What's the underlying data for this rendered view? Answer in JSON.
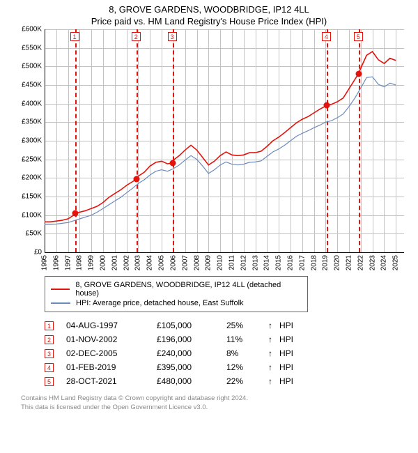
{
  "title": {
    "line1": "8, GROVE GARDENS, WOODBRIDGE, IP12 4LL",
    "line2": "Price paid vs. HM Land Registry's House Price Index (HPI)"
  },
  "chart": {
    "type": "line",
    "plot_bg": "#ffffff",
    "grid_color": "#c2c2c2",
    "axis_color": "#000000",
    "y": {
      "min": 0,
      "max": 600000,
      "step": 50000,
      "label_prefix": "£",
      "label_suffix": "K",
      "label_divisor": 1000,
      "fontsize": 10
    },
    "x": {
      "min": 1995,
      "max": 2025.7,
      "ticks_start": 1995,
      "ticks_end": 2025,
      "fontsize": 10
    },
    "series_property": {
      "name": "8, GROVE GARDENS, WOODBRIDGE, IP12 4LL (detached house)",
      "color": "#e3120b",
      "width": 1.6,
      "points": [
        [
          1995.0,
          82000
        ],
        [
          1995.5,
          82000
        ],
        [
          1996.0,
          84000
        ],
        [
          1996.5,
          86000
        ],
        [
          1997.0,
          90000
        ],
        [
          1997.5,
          100000
        ],
        [
          1997.6,
          105000
        ],
        [
          1998.0,
          108000
        ],
        [
          1998.5,
          112000
        ],
        [
          1999.0,
          118000
        ],
        [
          1999.5,
          124000
        ],
        [
          2000.0,
          134000
        ],
        [
          2000.5,
          148000
        ],
        [
          2001.0,
          158000
        ],
        [
          2001.5,
          168000
        ],
        [
          2002.0,
          180000
        ],
        [
          2002.8,
          196000
        ],
        [
          2003.0,
          205000
        ],
        [
          2003.5,
          215000
        ],
        [
          2004.0,
          232000
        ],
        [
          2004.5,
          242000
        ],
        [
          2005.0,
          245000
        ],
        [
          2005.5,
          238000
        ],
        [
          2005.9,
          240000
        ],
        [
          2006.0,
          248000
        ],
        [
          2006.5,
          260000
        ],
        [
          2007.0,
          275000
        ],
        [
          2007.5,
          288000
        ],
        [
          2008.0,
          275000
        ],
        [
          2008.5,
          255000
        ],
        [
          2009.0,
          235000
        ],
        [
          2009.5,
          245000
        ],
        [
          2010.0,
          260000
        ],
        [
          2010.5,
          270000
        ],
        [
          2011.0,
          262000
        ],
        [
          2011.5,
          260000
        ],
        [
          2012.0,
          262000
        ],
        [
          2012.5,
          268000
        ],
        [
          2013.0,
          268000
        ],
        [
          2013.5,
          272000
        ],
        [
          2014.0,
          285000
        ],
        [
          2014.5,
          300000
        ],
        [
          2015.0,
          310000
        ],
        [
          2015.5,
          322000
        ],
        [
          2016.0,
          335000
        ],
        [
          2016.5,
          348000
        ],
        [
          2017.0,
          358000
        ],
        [
          2017.5,
          365000
        ],
        [
          2018.0,
          375000
        ],
        [
          2018.5,
          385000
        ],
        [
          2019.1,
          395000
        ],
        [
          2019.5,
          398000
        ],
        [
          2020.0,
          405000
        ],
        [
          2020.5,
          415000
        ],
        [
          2021.0,
          440000
        ],
        [
          2021.8,
          480000
        ],
        [
          2022.0,
          495000
        ],
        [
          2022.5,
          530000
        ],
        [
          2023.0,
          540000
        ],
        [
          2023.5,
          518000
        ],
        [
          2024.0,
          508000
        ],
        [
          2024.5,
          522000
        ],
        [
          2025.0,
          516000
        ]
      ]
    },
    "series_hpi": {
      "name": "HPI: Average price, detached house, East Suffolk",
      "color": "#6b8abc",
      "width": 1.2,
      "points": [
        [
          1995.0,
          75000
        ],
        [
          1995.5,
          75000
        ],
        [
          1996.0,
          76000
        ],
        [
          1996.5,
          78000
        ],
        [
          1997.0,
          80000
        ],
        [
          1997.5,
          85000
        ],
        [
          1998.0,
          90000
        ],
        [
          1998.5,
          95000
        ],
        [
          1999.0,
          100000
        ],
        [
          1999.5,
          108000
        ],
        [
          2000.0,
          118000
        ],
        [
          2000.5,
          128000
        ],
        [
          2001.0,
          138000
        ],
        [
          2001.5,
          148000
        ],
        [
          2002.0,
          160000
        ],
        [
          2002.5,
          172000
        ],
        [
          2003.0,
          185000
        ],
        [
          2003.5,
          195000
        ],
        [
          2004.0,
          208000
        ],
        [
          2004.5,
          218000
        ],
        [
          2005.0,
          222000
        ],
        [
          2005.5,
          218000
        ],
        [
          2006.0,
          225000
        ],
        [
          2006.5,
          235000
        ],
        [
          2007.0,
          248000
        ],
        [
          2007.5,
          260000
        ],
        [
          2008.0,
          250000
        ],
        [
          2008.5,
          232000
        ],
        [
          2009.0,
          212000
        ],
        [
          2009.5,
          222000
        ],
        [
          2010.0,
          235000
        ],
        [
          2010.5,
          243000
        ],
        [
          2011.0,
          237000
        ],
        [
          2011.5,
          235000
        ],
        [
          2012.0,
          237000
        ],
        [
          2012.5,
          242000
        ],
        [
          2013.0,
          243000
        ],
        [
          2013.5,
          246000
        ],
        [
          2014.0,
          258000
        ],
        [
          2014.5,
          270000
        ],
        [
          2015.0,
          278000
        ],
        [
          2015.5,
          288000
        ],
        [
          2016.0,
          300000
        ],
        [
          2016.5,
          312000
        ],
        [
          2017.0,
          320000
        ],
        [
          2017.5,
          327000
        ],
        [
          2018.0,
          335000
        ],
        [
          2018.5,
          342000
        ],
        [
          2019.0,
          350000
        ],
        [
          2019.5,
          354000
        ],
        [
          2020.0,
          362000
        ],
        [
          2020.5,
          372000
        ],
        [
          2021.0,
          392000
        ],
        [
          2021.5,
          415000
        ],
        [
          2022.0,
          442000
        ],
        [
          2022.5,
          470000
        ],
        [
          2023.0,
          472000
        ],
        [
          2023.5,
          452000
        ],
        [
          2024.0,
          445000
        ],
        [
          2024.5,
          455000
        ],
        [
          2025.0,
          450000
        ]
      ]
    },
    "sale_markers": {
      "color": "#e3120b",
      "vline_color": "#e3120b",
      "items": [
        {
          "n": "1",
          "year": 1997.6,
          "price": 105000
        },
        {
          "n": "2",
          "year": 2002.84,
          "price": 196000
        },
        {
          "n": "3",
          "year": 2005.92,
          "price": 240000
        },
        {
          "n": "4",
          "year": 2019.09,
          "price": 395000
        },
        {
          "n": "5",
          "year": 2021.82,
          "price": 480000
        }
      ]
    }
  },
  "legend": {
    "row1": "8, GROVE GARDENS, WOODBRIDGE, IP12 4LL (detached house)",
    "row2": "HPI: Average price, detached house, East Suffolk"
  },
  "sales": {
    "arrow": "↑",
    "suffix": "HPI",
    "rows": [
      {
        "n": "1",
        "date": "04-AUG-1997",
        "price": "£105,000",
        "pct": "25%"
      },
      {
        "n": "2",
        "date": "01-NOV-2002",
        "price": "£196,000",
        "pct": "11%"
      },
      {
        "n": "3",
        "date": "02-DEC-2005",
        "price": "£240,000",
        "pct": "8%"
      },
      {
        "n": "4",
        "date": "01-FEB-2019",
        "price": "£395,000",
        "pct": "12%"
      },
      {
        "n": "5",
        "date": "28-OCT-2021",
        "price": "£480,000",
        "pct": "22%"
      }
    ]
  },
  "footer": {
    "line1": "Contains HM Land Registry data © Crown copyright and database right 2024.",
    "line2": "This data is licensed under the Open Government Licence v3.0."
  }
}
